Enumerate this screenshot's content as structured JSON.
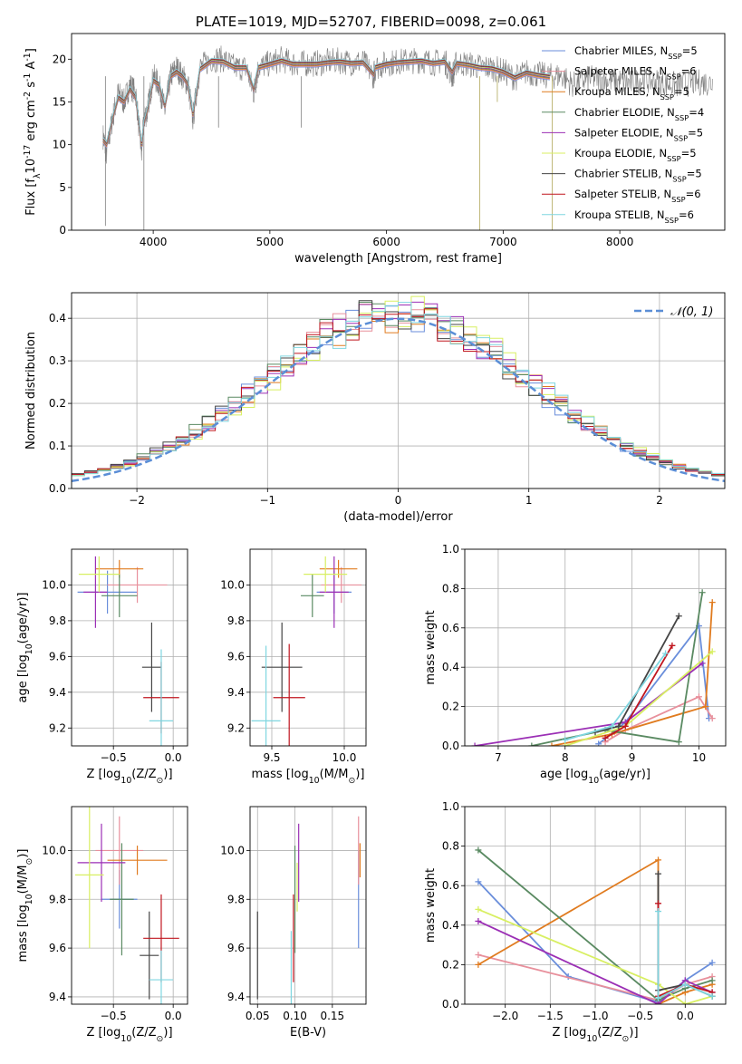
{
  "title": "PLATE=1019, MJD=52707, FIBERID=0098, z=0.061",
  "series": [
    {
      "name": "Chabrier MILES",
      "nssp": "5",
      "color": "#6a8edb"
    },
    {
      "name": "Salpeter MILES",
      "nssp": "6",
      "color": "#e8909c"
    },
    {
      "name": "Kroupa MILES",
      "nssp": "5",
      "color": "#e07b1f"
    },
    {
      "name": "Chabrier ELODIE",
      "nssp": "4",
      "color": "#5a8a62"
    },
    {
      "name": "Salpeter ELODIE",
      "nssp": "5",
      "color": "#9b2fb5"
    },
    {
      "name": "Kroupa ELODIE",
      "nssp": "5",
      "color": "#d8ef62"
    },
    {
      "name": "Chabrier STELIB",
      "nssp": "5",
      "color": "#444444"
    },
    {
      "name": "Salpeter STELIB",
      "nssp": "6",
      "color": "#c0161f"
    },
    {
      "name": "Kroupa STELIB",
      "nssp": "6",
      "color": "#7fd6e0"
    }
  ],
  "chart_data": [
    {
      "id": "spectrum",
      "type": "line",
      "title": "PLATE=1019, MJD=52707, FIBERID=0098, z=0.061",
      "xlabel": "wavelength [Angstrom, rest frame]",
      "ylabel": "Flux [f$_\\lambda$10$^{-17}$ erg cm$^{-2}$ s$^{-1}$ A$^{-1}$]",
      "xlim": [
        3300,
        8900
      ],
      "ylim": [
        0,
        23
      ],
      "xticks": [
        4000,
        5000,
        6000,
        7000,
        8000
      ],
      "yticks": [
        0,
        5,
        10,
        15,
        20
      ],
      "data_line": {
        "color": "#7f7f7f",
        "x": [
          3570,
          3600,
          3650,
          3700,
          3750,
          3800,
          3850,
          3900,
          3920,
          3950,
          4000,
          4050,
          4100,
          4150,
          4200,
          4250,
          4300,
          4340,
          4400,
          4500,
          4600,
          4700,
          4800,
          4861,
          4900,
          5000,
          5100,
          5200,
          5300,
          5400,
          5500,
          5600,
          5700,
          5800,
          5890,
          5900,
          6000,
          6100,
          6200,
          6300,
          6400,
          6500,
          6563,
          6600,
          6700,
          6800,
          6900,
          7000,
          7100,
          7200,
          7300,
          7400,
          7500,
          7600,
          7700,
          7800,
          7900,
          8000,
          8100,
          8200,
          8300,
          8400,
          8500,
          8600,
          8700,
          8800
        ],
        "y": [
          11,
          9,
          13,
          16,
          15,
          17,
          16,
          9,
          13,
          14,
          18,
          17,
          14,
          18,
          19,
          18,
          17,
          13,
          19,
          20,
          20,
          19,
          19,
          16,
          19,
          19.5,
          20,
          19.5,
          19.5,
          19.5,
          19.7,
          19.8,
          19.6,
          19.7,
          18,
          19,
          19.5,
          19.7,
          19.8,
          19.9,
          19.6,
          19.8,
          18,
          19.6,
          19.4,
          19.1,
          19,
          18.6,
          17.8,
          18.5,
          18.2,
          18,
          18.1,
          17,
          17.6,
          17.8,
          17.5,
          17.4,
          17.2,
          17.6,
          17.4,
          17.1,
          17,
          17.2,
          17.3,
          17.2
        ]
      },
      "model_x": [
        3570,
        3600,
        3650,
        3700,
        3750,
        3800,
        3850,
        3900,
        3920,
        3950,
        4000,
        4050,
        4100,
        4150,
        4200,
        4250,
        4300,
        4340,
        4400,
        4500,
        4600,
        4700,
        4800,
        4861,
        4900,
        5000,
        5100,
        5200,
        5300,
        5400,
        5500,
        5600,
        5700,
        5800,
        5890,
        5900,
        6000,
        6100,
        6200,
        6300,
        6400,
        6500,
        6563,
        6600,
        6700,
        6800,
        6900,
        7000,
        7100,
        7200,
        7300,
        7400
      ],
      "model_y": [
        10.5,
        10,
        13,
        15.5,
        15,
        16.5,
        15.5,
        10,
        12.5,
        14,
        17.5,
        17,
        14.5,
        18,
        18.5,
        18,
        17,
        13.5,
        18.8,
        19.8,
        19.7,
        19,
        19,
        16.5,
        19,
        19.4,
        19.8,
        19.4,
        19.4,
        19.4,
        19.6,
        19.7,
        19.5,
        19.6,
        18.2,
        19,
        19.4,
        19.6,
        19.7,
        19.8,
        19.5,
        19.7,
        18.5,
        19.5,
        19.3,
        19,
        18.9,
        18.5,
        17.8,
        18.4,
        18.1,
        17.9
      ]
    },
    {
      "id": "residuals",
      "type": "line",
      "xlabel": "(data-model)/error",
      "ylabel": "Normed distribution",
      "xlim": [
        -2.5,
        2.5
      ],
      "ylim": [
        0,
        0.46
      ],
      "xticks": [
        -2,
        -1,
        0,
        1,
        2
      ],
      "yticks": [
        0.0,
        0.1,
        0.2,
        0.3,
        0.4
      ],
      "legend": "$\\mathcal{N}(0, 1)$",
      "legend_position": "top-right",
      "gauss_color": "#5b8ed6"
    },
    {
      "id": "age_vs_Z",
      "type": "scatter",
      "xlabel": "Z [log$_{10}$(Z/Z$_\\odot$)]",
      "ylabel": "age  [log$_{10}$(age/yr)]",
      "xlim": [
        -0.85,
        0.12
      ],
      "ylim": [
        9.1,
        10.2
      ],
      "xticks": [
        -0.5,
        0.0
      ],
      "yticks": [
        9.2,
        9.4,
        9.6,
        9.8,
        10.0
      ],
      "points": [
        {
          "x": -0.55,
          "y": 9.96,
          "xerr": 0.25,
          "yerr": 0.12,
          "series": 0
        },
        {
          "x": -0.3,
          "y": 10.0,
          "xerr": 0.25,
          "yerr": 0.1,
          "series": 1
        },
        {
          "x": -0.45,
          "y": 10.09,
          "xerr": 0.2,
          "yerr": 0.05,
          "series": 2
        },
        {
          "x": -0.45,
          "y": 9.94,
          "xerr": 0.15,
          "yerr": 0.12,
          "series": 3
        },
        {
          "x": -0.65,
          "y": 9.96,
          "xerr": 0.1,
          "yerr": 0.2,
          "series": 4
        },
        {
          "x": -0.62,
          "y": 10.06,
          "xerr": 0.17,
          "yerr": 0.1,
          "series": 5
        },
        {
          "x": -0.18,
          "y": 9.54,
          "xerr": 0.08,
          "yerr": 0.25,
          "series": 6
        },
        {
          "x": -0.1,
          "y": 9.37,
          "xerr": 0.15,
          "yerr": 0.2,
          "series": 7
        },
        {
          "x": -0.1,
          "y": 9.24,
          "xerr": 0.1,
          "yerr": 0.4,
          "series": 8
        }
      ]
    },
    {
      "id": "age_vs_mass",
      "type": "scatter",
      "xlabel": "mass [log$_{10}$(M/M$_\\odot$)]",
      "ylabel": "",
      "xlim": [
        9.35,
        10.15
      ],
      "ylim": [
        9.1,
        10.2
      ],
      "xticks": [
        9.5,
        10.0
      ],
      "yticks": [
        9.2,
        9.4,
        9.6,
        9.8,
        10.0
      ],
      "points": [
        {
          "x": 9.93,
          "y": 9.96,
          "xerr": 0.12,
          "yerr": 0.12,
          "series": 0
        },
        {
          "x": 9.98,
          "y": 10.0,
          "xerr": 0.14,
          "yerr": 0.1,
          "series": 1
        },
        {
          "x": 9.96,
          "y": 10.09,
          "xerr": 0.13,
          "yerr": 0.05,
          "series": 2
        },
        {
          "x": 9.78,
          "y": 9.94,
          "xerr": 0.08,
          "yerr": 0.12,
          "series": 3
        },
        {
          "x": 9.93,
          "y": 9.96,
          "xerr": 0.1,
          "yerr": 0.2,
          "series": 4
        },
        {
          "x": 9.87,
          "y": 10.06,
          "xerr": 0.15,
          "yerr": 0.1,
          "series": 5
        },
        {
          "x": 9.57,
          "y": 9.54,
          "xerr": 0.14,
          "yerr": 0.25,
          "series": 6
        },
        {
          "x": 9.62,
          "y": 9.37,
          "xerr": 0.11,
          "yerr": 0.3,
          "series": 7
        },
        {
          "x": 9.46,
          "y": 9.24,
          "xerr": 0.1,
          "yerr": 0.42,
          "series": 8
        }
      ]
    },
    {
      "id": "mw_vs_age",
      "type": "line",
      "xlabel": "age  [log$_{10}$(age/yr)]",
      "ylabel": "mass weight",
      "xlim": [
        6.5,
        10.4
      ],
      "ylim": [
        0,
        1.0
      ],
      "xticks": [
        7,
        8,
        9,
        10
      ],
      "yticks": [
        0.0,
        0.2,
        0.4,
        0.6,
        0.8,
        1.0
      ],
      "series": [
        {
          "series": 0,
          "x": [
            8.5,
            8.9,
            10.0,
            10.15
          ],
          "y": [
            0.01,
            0.12,
            0.61,
            0.14
          ]
        },
        {
          "series": 1,
          "x": [
            8.6,
            8.9,
            10.0,
            10.2
          ],
          "y": [
            0.02,
            0.08,
            0.25,
            0.14
          ]
        },
        {
          "series": 2,
          "x": [
            7.8,
            8.7,
            10.1,
            10.2
          ],
          "y": [
            0.0,
            0.06,
            0.2,
            0.73
          ]
        },
        {
          "series": 3,
          "x": [
            7.5,
            8.6,
            9.7,
            10.05
          ],
          "y": [
            0.0,
            0.08,
            0.02,
            0.78
          ]
        },
        {
          "series": 4,
          "x": [
            6.65,
            8.9,
            10.05
          ],
          "y": [
            0.0,
            0.12,
            0.42
          ]
        },
        {
          "series": 5,
          "x": [
            8.0,
            8.9,
            10.2
          ],
          "y": [
            0.0,
            0.1,
            0.48
          ]
        },
        {
          "series": 6,
          "x": [
            8.45,
            8.8,
            9.7
          ],
          "y": [
            0.07,
            0.1,
            0.66
          ]
        },
        {
          "series": 7,
          "x": [
            8.6,
            8.9,
            9.6
          ],
          "y": [
            0.04,
            0.1,
            0.51
          ]
        },
        {
          "series": 8,
          "x": [
            8.0,
            8.7,
            9.5
          ],
          "y": [
            0.03,
            0.1,
            0.47
          ]
        }
      ]
    },
    {
      "id": "mass_vs_Z",
      "type": "scatter",
      "xlabel": "Z [log$_{10}$(Z/Z$_\\odot$)]",
      "ylabel": "mass [log$_{10}$(M/M$_\\odot$)]",
      "xlim": [
        -0.85,
        0.12
      ],
      "ylim": [
        9.37,
        10.18
      ],
      "xticks": [
        -0.5,
        0.0
      ],
      "yticks": [
        9.4,
        9.6,
        9.8,
        10.0
      ],
      "points": [
        {
          "x": -0.45,
          "y": 9.8,
          "xerr": 0.15,
          "yerr": 0.12,
          "series": 0
        },
        {
          "x": -0.45,
          "y": 10.0,
          "xerr": 0.2,
          "yerr": 0.14,
          "series": 1
        },
        {
          "x": -0.3,
          "y": 9.96,
          "xerr": 0.25,
          "yerr": 0.06,
          "series": 2
        },
        {
          "x": -0.43,
          "y": 9.8,
          "xerr": 0.1,
          "yerr": 0.23,
          "series": 3
        },
        {
          "x": -0.6,
          "y": 9.95,
          "xerr": 0.2,
          "yerr": 0.16,
          "series": 4
        },
        {
          "x": -0.7,
          "y": 9.9,
          "xerr": 0.12,
          "yerr": 0.3,
          "series": 5
        },
        {
          "x": -0.2,
          "y": 9.57,
          "xerr": 0.08,
          "yerr": 0.18,
          "series": 6
        },
        {
          "x": -0.1,
          "y": 9.64,
          "xerr": 0.15,
          "yerr": 0.18,
          "series": 7
        },
        {
          "x": -0.1,
          "y": 9.47,
          "xerr": 0.1,
          "yerr": 0.12,
          "series": 8
        }
      ]
    },
    {
      "id": "mass_vs_EBV",
      "type": "scatter",
      "xlabel": "E(B-V)",
      "ylabel": "",
      "xlim": [
        0.04,
        0.195
      ],
      "ylim": [
        9.37,
        10.18
      ],
      "xticks": [
        0.05,
        0.1,
        0.15
      ],
      "yticks": [
        9.4,
        9.6,
        9.8,
        10.0
      ],
      "points": [
        {
          "x": 0.185,
          "y": 9.8,
          "yerr": 0.2,
          "series": 0
        },
        {
          "x": 0.185,
          "y": 10.0,
          "yerr": 0.14,
          "series": 1
        },
        {
          "x": 0.187,
          "y": 9.96,
          "yerr": 0.07,
          "series": 2
        },
        {
          "x": 0.1,
          "y": 9.8,
          "yerr": 0.22,
          "series": 3
        },
        {
          "x": 0.105,
          "y": 9.95,
          "yerr": 0.16,
          "series": 4
        },
        {
          "x": 0.103,
          "y": 9.85,
          "yerr": 0.1,
          "series": 5
        },
        {
          "x": 0.05,
          "y": 9.57,
          "yerr": 0.18,
          "series": 6
        },
        {
          "x": 0.098,
          "y": 9.64,
          "yerr": 0.18,
          "series": 7
        },
        {
          "x": 0.095,
          "y": 9.5,
          "yerr": 0.17,
          "series": 8
        }
      ]
    },
    {
      "id": "mw_vs_Z",
      "type": "line",
      "xlabel": "Z [log$_{10}$(Z/Z$_\\odot$)]",
      "ylabel": "mass weight",
      "xlim": [
        -2.45,
        0.45
      ],
      "ylim": [
        0,
        1.0
      ],
      "xticks": [
        -2.0,
        -1.5,
        -1.0,
        -0.5,
        0.0
      ],
      "yticks": [
        0.0,
        0.2,
        0.4,
        0.6,
        0.8,
        1.0
      ],
      "series": [
        {
          "series": 0,
          "x": [
            -2.3,
            -1.3,
            -0.3,
            0.0,
            0.3
          ],
          "y": [
            0.62,
            0.14,
            0.01,
            0.12,
            0.21
          ]
        },
        {
          "series": 1,
          "x": [
            -2.3,
            -0.3,
            0.0,
            0.3
          ],
          "y": [
            0.25,
            0.02,
            0.1,
            0.14
          ]
        },
        {
          "series": 2,
          "x": [
            -2.3,
            -0.3,
            -0.3,
            0.0,
            0.3
          ],
          "y": [
            0.2,
            0.73,
            0.0,
            0.06,
            0.1
          ]
        },
        {
          "series": 3,
          "x": [
            -2.3,
            -0.3,
            0.0,
            0.3
          ],
          "y": [
            0.78,
            0.02,
            0.08,
            0.12
          ]
        },
        {
          "series": 4,
          "x": [
            -2.3,
            -0.3,
            0.0,
            0.3
          ],
          "y": [
            0.42,
            0.0,
            0.12,
            0.06
          ]
        },
        {
          "series": 5,
          "x": [
            -2.3,
            -0.3,
            0.0,
            0.3
          ],
          "y": [
            0.48,
            0.1,
            0.0,
            0.04
          ]
        },
        {
          "series": 6,
          "x": [
            -0.3,
            -0.3,
            0.0,
            0.3
          ],
          "y": [
            0.66,
            0.07,
            0.1,
            0.04
          ]
        },
        {
          "series": 7,
          "x": [
            -0.3,
            -0.3,
            0.0,
            0.3
          ],
          "y": [
            0.51,
            0.04,
            0.1,
            0.06
          ]
        },
        {
          "series": 8,
          "x": [
            -0.3,
            -0.3,
            0.0,
            0.3
          ],
          "y": [
            0.47,
            0.03,
            0.1,
            0.04
          ]
        }
      ]
    }
  ]
}
